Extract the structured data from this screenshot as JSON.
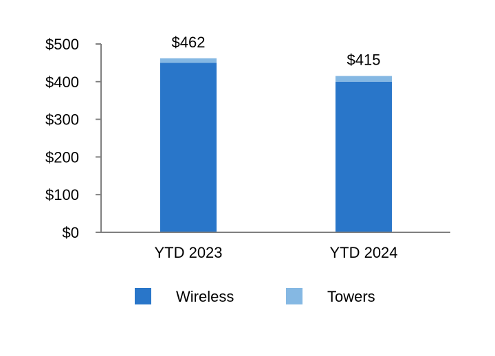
{
  "chart_data": {
    "type": "bar",
    "stacked": true,
    "categories": [
      "YTD 2023",
      "YTD 2024"
    ],
    "series": [
      {
        "name": "Wireless",
        "values": [
          450,
          400
        ],
        "color": "#2976c9"
      },
      {
        "name": "Towers",
        "values": [
          12,
          15
        ],
        "color": "#85b8e3"
      }
    ],
    "totals": [
      462,
      415
    ],
    "total_labels": [
      "$462",
      "$415"
    ],
    "ylim": [
      0,
      500
    ],
    "yticks": [
      0,
      100,
      200,
      300,
      400,
      500
    ],
    "ytick_labels": [
      "$0",
      "$100",
      "$200",
      "$300",
      "$400",
      "$500"
    ],
    "grid": false,
    "legend_position": "bottom",
    "axis_color": "#7f7f7f"
  }
}
